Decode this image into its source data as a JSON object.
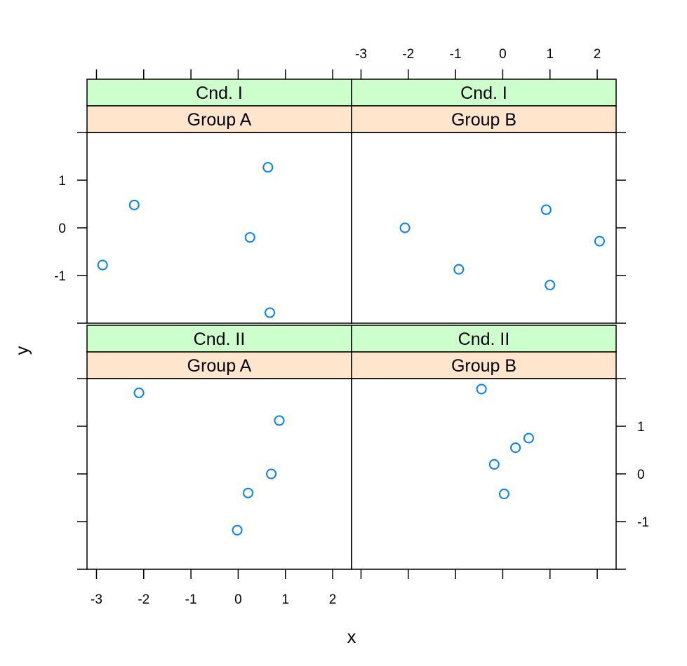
{
  "chart_data": {
    "type": "scatter",
    "layout": "2x2 trellis",
    "xlabel": "x",
    "ylabel": "y",
    "xlim": [
      -3.2,
      2.4
    ],
    "ylim": [
      -2.0,
      2.0
    ],
    "xticks": [
      -3,
      -2,
      -1,
      0,
      1,
      2
    ],
    "yticks": [
      -1,
      0,
      1
    ],
    "point_color": "#0080ff",
    "strip_colors": {
      "condition": "#ccffcc",
      "group": "#ffe5cc"
    },
    "panels": [
      {
        "condition": "Cnd. I",
        "group": "Group A",
        "row": 0,
        "col": 0,
        "points": [
          {
            "x": -2.87,
            "y": -0.78
          },
          {
            "x": -2.2,
            "y": 0.48
          },
          {
            "x": 0.25,
            "y": -0.2
          },
          {
            "x": 0.63,
            "y": 1.27
          },
          {
            "x": 0.67,
            "y": -1.78
          }
        ]
      },
      {
        "condition": "Cnd. I",
        "group": "Group B",
        "row": 0,
        "col": 1,
        "points": [
          {
            "x": -2.07,
            "y": 0.0
          },
          {
            "x": -0.93,
            "y": -0.87
          },
          {
            "x": 0.92,
            "y": 0.38
          },
          {
            "x": 1.0,
            "y": -1.2
          },
          {
            "x": 2.05,
            "y": -0.28
          }
        ]
      },
      {
        "condition": "Cnd. II",
        "group": "Group A",
        "row": 1,
        "col": 0,
        "points": [
          {
            "x": -2.1,
            "y": 1.7
          },
          {
            "x": 0.87,
            "y": 1.12
          },
          {
            "x": 0.7,
            "y": 0.0
          },
          {
            "x": 0.21,
            "y": -0.4
          },
          {
            "x": -0.02,
            "y": -1.18
          }
        ]
      },
      {
        "condition": "Cnd. II",
        "group": "Group B",
        "row": 1,
        "col": 1,
        "points": [
          {
            "x": -0.45,
            "y": 1.78
          },
          {
            "x": 0.55,
            "y": 0.75
          },
          {
            "x": 0.27,
            "y": 0.55
          },
          {
            "x": -0.18,
            "y": 0.2
          },
          {
            "x": 0.03,
            "y": -0.42
          }
        ]
      }
    ]
  }
}
